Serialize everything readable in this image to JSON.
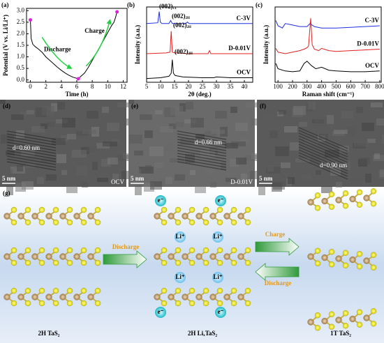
{
  "chart_data": [
    {
      "type": "line",
      "label": "(a)",
      "xlabel": "Time (h)",
      "ylabel": "Potential (V vs. Li/Li⁺)",
      "xlim": [
        -0.5,
        12.5
      ],
      "xticks": [
        0,
        2,
        4,
        6,
        8,
        10,
        12
      ],
      "ylim": [
        -0.1,
        3.1
      ],
      "yticks": [
        {
          "value": 0,
          "label": "0.0"
        },
        0.5,
        {
          "value": 1,
          "label": "1.0"
        },
        1.5,
        {
          "value": 2,
          "label": "2.0"
        },
        2.5,
        {
          "value": 3,
          "label": "3.0"
        }
      ],
      "annotations": [
        "Discharge",
        "Charge"
      ],
      "series": [
        {
          "color": "#000000",
          "x": [
            0,
            0.1,
            0.3,
            0.6,
            1,
            1.5,
            2,
            2.5,
            3,
            3.5,
            4,
            4.5,
            5,
            5.5,
            6,
            6.2
          ],
          "values": [
            2.6,
            1.8,
            1.55,
            1.45,
            1.35,
            1.2,
            1.0,
            0.85,
            0.7,
            0.55,
            0.42,
            0.3,
            0.2,
            0.12,
            0.07,
            0.05
          ]
        },
        {
          "color": "#000000",
          "x": [
            6.2,
            6.5,
            7,
            7.5,
            8,
            8.5,
            9,
            9.5,
            10,
            10.5,
            10.8,
            11,
            11.2
          ],
          "values": [
            0.05,
            0.15,
            0.3,
            0.55,
            0.85,
            1.15,
            1.45,
            1.75,
            2.05,
            2.35,
            2.5,
            2.7,
            2.95
          ]
        },
        {
          "type": "scatter",
          "color": "#e020e0",
          "x": [
            0,
            6.2,
            11.2
          ],
          "values": [
            2.6,
            0.05,
            2.95
          ]
        }
      ]
    },
    {
      "type": "line",
      "label": "(b)",
      "xlabel": "2θ (deg.)",
      "ylabel": "Intensity (a.u.)",
      "xlim": [
        5,
        43
      ],
      "xticks": [
        5,
        10,
        15,
        20,
        25,
        30,
        35,
        40
      ],
      "ylim": [
        0,
        100
      ],
      "peaks": [
        {
          "text": "(002)",
          "sub": "1T"
        },
        {
          "text": "(002)",
          "sub": "2H"
        },
        {
          "text": "(002)",
          "sub": "2H"
        },
        {
          "text": "(002)",
          "sub": "2H"
        }
      ],
      "series": [
        {
          "name": "C-3V",
          "color": "#1f2fe0",
          "x": [
            5,
            9,
            9.5,
            9.9,
            10.5,
            13,
            13.6,
            14.2,
            19,
            19.6,
            20.2,
            25,
            43
          ],
          "values": [
            78,
            79,
            94,
            80,
            78,
            78,
            82,
            78,
            78,
            80,
            78,
            78,
            78
          ]
        },
        {
          "name": "D-0.01V",
          "color": "#e02020",
          "x": [
            5,
            12,
            13.4,
            13.8,
            14.2,
            15,
            20,
            27,
            27.5,
            28,
            35,
            43
          ],
          "values": [
            38,
            39,
            40,
            68,
            40,
            39,
            38,
            38,
            42,
            38,
            38,
            38
          ]
        },
        {
          "name": "OCV",
          "color": "#000000",
          "x": [
            5,
            10,
            13,
            13.8,
            14.2,
            14.6,
            15.2,
            18,
            25,
            29,
            30,
            35,
            40,
            43
          ],
          "values": [
            5,
            6,
            8,
            12,
            30,
            12,
            9,
            7,
            6,
            6,
            7,
            6,
            6,
            6
          ]
        }
      ]
    },
    {
      "type": "line",
      "label": "(c)",
      "xlabel": "Raman shift (cm⁻¹)",
      "ylabel": "Intensity (a.u.)",
      "xlim": [
        80,
        810
      ],
      "xticks": [
        100,
        200,
        300,
        400,
        500,
        600,
        700,
        800
      ],
      "ylim": [
        0,
        100
      ],
      "series": [
        {
          "name": "C-3V",
          "color": "#1f2fe0",
          "x": [
            85,
            100,
            130,
            150,
            200,
            250,
            300,
            320,
            350,
            400,
            450,
            500,
            600,
            700,
            800
          ],
          "values": [
            82,
            75,
            72,
            78,
            76,
            74,
            74,
            78,
            74,
            72,
            72,
            72,
            73,
            74,
            75
          ]
        },
        {
          "name": "D-0.01V",
          "color": "#e02020",
          "x": [
            85,
            100,
            150,
            200,
            250,
            280,
            300,
            310,
            325,
            335,
            350,
            380,
            400,
            450,
            500,
            600,
            700,
            800
          ],
          "values": [
            45,
            40,
            38,
            40,
            42,
            44,
            46,
            48,
            85,
            50,
            44,
            42,
            45,
            42,
            41,
            42,
            43,
            44
          ]
        },
        {
          "name": "OCV",
          "color": "#000000",
          "x": [
            85,
            100,
            150,
            200,
            250,
            280,
            300,
            330,
            360,
            400,
            450,
            500,
            600,
            700,
            800
          ],
          "values": [
            25,
            18,
            15,
            14,
            15,
            25,
            28,
            22,
            18,
            20,
            16,
            15,
            14,
            14,
            15
          ]
        }
      ]
    }
  ],
  "tem": [
    {
      "label": "(d)",
      "scale": "5 nm",
      "spacing": "d=0.60 nm",
      "condition": "OCV"
    },
    {
      "label": "(e)",
      "scale": "5 nm",
      "spacing": "d=0.66 nm",
      "condition": "D-0.01V"
    },
    {
      "label": "(f)",
      "scale": "5 nm",
      "spacing": "d=0.90 nm"
    }
  ],
  "schematic": {
    "label": "(g)",
    "arrows": [
      "Discharge",
      "Charge",
      "Discharge"
    ],
    "electron": "e⁻",
    "ion": "Li⁺",
    "phases": [
      "2H TaS₂",
      "2H LiₓTaS₂",
      "1T TaS₂"
    ]
  }
}
